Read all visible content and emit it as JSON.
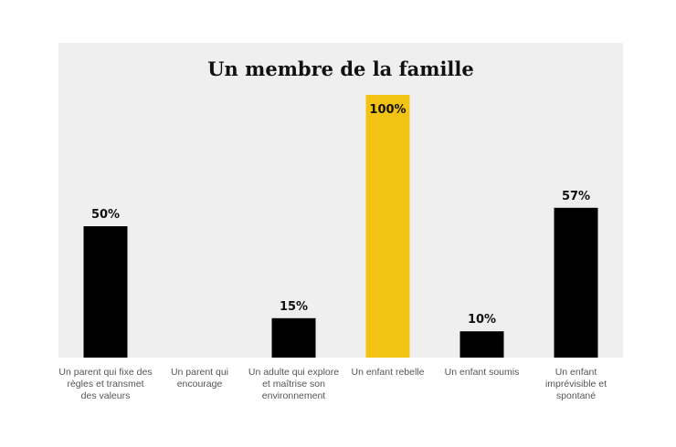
{
  "chart_data": {
    "type": "bar",
    "title": "Un membre de la famille",
    "categories": [
      [
        "Un parent qui fixe des",
        "règles et transmet",
        "des valeurs"
      ],
      [
        "Un parent qui",
        "encourage"
      ],
      [
        "Un adulte qui explore",
        "et maîtrise son",
        "environnement"
      ],
      [
        "Un enfant rebelle"
      ],
      [
        "Un enfant soumis"
      ],
      [
        "Un enfant",
        "imprévisible et",
        "spontané"
      ]
    ],
    "values": [
      50,
      0,
      15,
      100,
      10,
      57
    ],
    "value_labels": [
      "50%",
      "",
      "15%",
      "100%",
      "10%",
      "57%"
    ],
    "ylim": [
      0,
      100
    ],
    "grid": false,
    "legend": "none",
    "colors": {
      "default_bar": "#000000",
      "highlight_bar": "#f2c313",
      "plot_background": "#efefef",
      "label_default": "#111111"
    },
    "highlight_index": 3
  }
}
